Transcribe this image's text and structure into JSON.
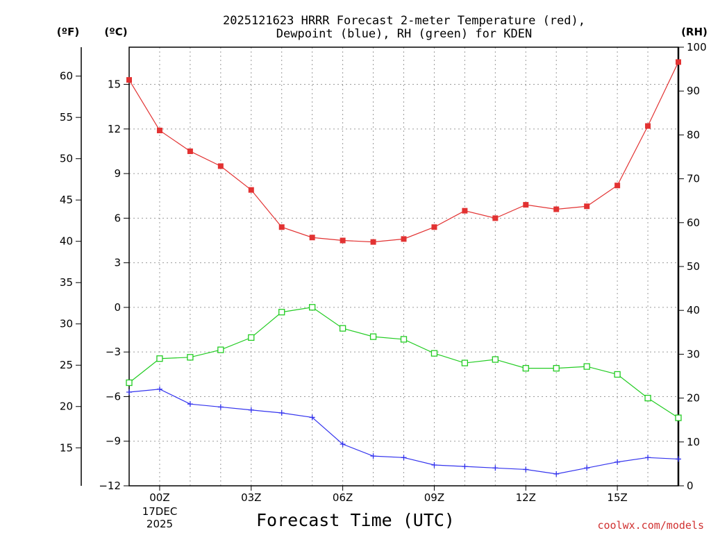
{
  "title_line1": "2025121623 HRRR Forecast 2-meter Temperature (red),",
  "title_line2": "Dewpoint (blue), RH (green) for KDEN",
  "units": {
    "f": "(ºF)",
    "c": "(ºC)",
    "rh": "(RH)"
  },
  "x_axis_label": "Forecast Time (UTC)",
  "date_line1": "17DEC",
  "date_line2": "2025",
  "credit": "coolwx.com/models",
  "colors": {
    "temperature": "#e23232",
    "dewpoint": "#3333ee",
    "rh": "#22cc22"
  },
  "chart_data": {
    "type": "line",
    "title": "2025121623 HRRR Forecast 2-meter Temperature (red), Dewpoint (blue), RH (green) for KDEN",
    "xlabel": "Forecast Time (UTC)",
    "x": [
      -1,
      0,
      1,
      2,
      3,
      4,
      5,
      6,
      7,
      8,
      9,
      10,
      11,
      12,
      13,
      14,
      15,
      16,
      17
    ],
    "xlim": [
      -1,
      17
    ],
    "x_ticks": [
      {
        "v": 0,
        "label": "00Z"
      },
      {
        "v": 3,
        "label": "03Z"
      },
      {
        "v": 6,
        "label": "06Z"
      },
      {
        "v": 9,
        "label": "09Z"
      },
      {
        "v": 12,
        "label": "12Z"
      },
      {
        "v": 15,
        "label": "15Z"
      }
    ],
    "grid_x": [
      0,
      1,
      2,
      3,
      4,
      5,
      6,
      7,
      8,
      9,
      10,
      11,
      12,
      13,
      14,
      15,
      16
    ],
    "ylim_c": [
      -12,
      17.5
    ],
    "yticks_c": [
      -12,
      -9,
      -6,
      -3,
      0,
      3,
      6,
      9,
      12,
      15
    ],
    "ylim_f": [
      10.4,
      63.5
    ],
    "yticks_f": [
      15,
      20,
      25,
      30,
      35,
      40,
      45,
      50,
      55,
      60
    ],
    "ylim_rh": [
      0,
      100
    ],
    "yticks_rh": [
      0,
      10,
      20,
      30,
      40,
      50,
      60,
      70,
      80,
      90,
      100
    ],
    "series": [
      {
        "name": "Temperature",
        "axis": "c",
        "marker": "square",
        "values": [
          15.3,
          11.9,
          10.5,
          9.5,
          7.9,
          5.4,
          4.7,
          4.5,
          4.4,
          4.6,
          5.4,
          6.5,
          6.0,
          6.9,
          6.6,
          6.8,
          8.2,
          12.2,
          16.5
        ]
      },
      {
        "name": "Dewpoint",
        "axis": "c",
        "marker": "plus",
        "values": [
          -5.7,
          -5.5,
          -6.5,
          -6.7,
          -6.9,
          -7.1,
          -7.4,
          -9.2,
          -10.0,
          -10.1,
          -10.6,
          -10.7,
          -10.8,
          -10.9,
          -11.2,
          -10.8,
          -10.4,
          -10.1,
          -10.2
        ]
      },
      {
        "name": "RH",
        "axis": "rh",
        "marker": "open-square",
        "values": [
          23.5,
          29.0,
          29.3,
          31.0,
          33.8,
          39.6,
          40.7,
          35.9,
          34.0,
          33.4,
          30.2,
          28.0,
          28.8,
          26.8,
          26.8,
          27.2,
          25.4,
          20.0,
          15.5
        ]
      }
    ]
  }
}
